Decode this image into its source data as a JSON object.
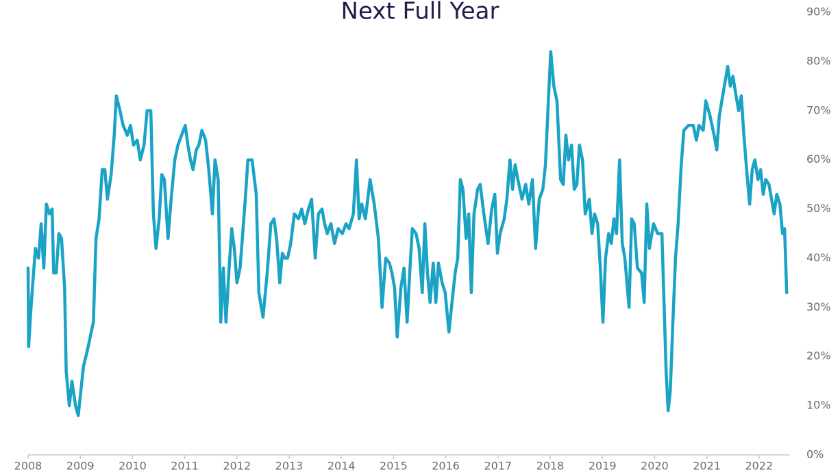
{
  "chart_data": {
    "type": "line",
    "title": "Next Full Year",
    "color": "#1ba3c6",
    "y_axis_side": "right",
    "grid": false,
    "x": [
      2008.0,
      2008.01,
      2008.05,
      2008.09,
      2008.14,
      2008.2,
      2008.25,
      2008.3,
      2008.35,
      2008.41,
      2008.46,
      2008.49,
      2008.54,
      2008.59,
      2008.64,
      2008.7,
      2008.73,
      2008.79,
      2008.84,
      2008.91,
      2008.96,
      2009.01,
      2009.06,
      2009.13,
      2009.19,
      2009.25,
      2009.3,
      2009.36,
      2009.42,
      2009.47,
      2009.52,
      2009.59,
      2009.65,
      2009.69,
      2009.76,
      2009.82,
      2009.9,
      2009.96,
      2010.02,
      2010.09,
      2010.15,
      2010.22,
      2010.28,
      2010.35,
      2010.4,
      2010.45,
      2010.51,
      2010.56,
      2010.61,
      2010.68,
      2010.74,
      2010.81,
      2010.87,
      2010.94,
      2011.01,
      2011.06,
      2011.11,
      2011.16,
      2011.22,
      2011.27,
      2011.33,
      2011.4,
      2011.46,
      2011.53,
      2011.58,
      2011.64,
      2011.69,
      2011.74,
      2011.79,
      2011.85,
      2011.9,
      2011.95,
      2012.0,
      2012.06,
      2012.11,
      2012.16,
      2012.21,
      2012.29,
      2012.37,
      2012.42,
      2012.5,
      2012.58,
      2012.65,
      2012.71,
      2012.76,
      2012.82,
      2012.87,
      2012.92,
      2012.97,
      2013.03,
      2013.1,
      2013.18,
      2013.24,
      2013.3,
      2013.37,
      2013.43,
      2013.5,
      2013.56,
      2013.63,
      2013.68,
      2013.73,
      2013.8,
      2013.87,
      2013.94,
      2014.02,
      2014.09,
      2014.15,
      2014.23,
      2014.29,
      2014.34,
      2014.39,
      2014.46,
      2014.55,
      2014.63,
      2014.71,
      2014.78,
      2014.85,
      2014.92,
      2014.97,
      2015.02,
      2015.07,
      2015.14,
      2015.2,
      2015.26,
      2015.31,
      2015.36,
      2015.43,
      2015.49,
      2015.55,
      2015.6,
      2015.65,
      2015.7,
      2015.76,
      2015.81,
      2015.86,
      2015.93,
      2015.99,
      2016.06,
      2016.12,
      2016.18,
      2016.23,
      2016.28,
      2016.33,
      2016.39,
      2016.44,
      2016.49,
      2016.54,
      2016.61,
      2016.66,
      2016.73,
      2016.81,
      2016.88,
      2016.94,
      2016.99,
      2017.04,
      2017.12,
      2017.17,
      2017.23,
      2017.28,
      2017.33,
      2017.38,
      2017.46,
      2017.53,
      2017.59,
      2017.66,
      2017.72,
      2017.79,
      2017.86,
      2017.91,
      2017.96,
      2018.01,
      2018.07,
      2018.13,
      2018.2,
      2018.25,
      2018.3,
      2018.35,
      2018.41,
      2018.46,
      2018.51,
      2018.56,
      2018.62,
      2018.67,
      2018.75,
      2018.8,
      2018.85,
      2018.91,
      2018.96,
      2019.01,
      2019.06,
      2019.12,
      2019.17,
      2019.22,
      2019.27,
      2019.33,
      2019.38,
      2019.43,
      2019.51,
      2019.56,
      2019.61,
      2019.67,
      2019.75,
      2019.8,
      2019.85,
      2019.9,
      2019.98,
      2020.06,
      2020.14,
      2020.22,
      2020.26,
      2020.3,
      2020.35,
      2020.4,
      2020.45,
      2020.51,
      2020.56,
      2020.65,
      2020.74,
      2020.8,
      2020.85,
      2020.93,
      2020.98,
      2021.06,
      2021.14,
      2021.19,
      2021.24,
      2021.32,
      2021.4,
      2021.45,
      2021.5,
      2021.56,
      2021.61,
      2021.66,
      2021.71,
      2021.77,
      2021.82,
      2021.87,
      2021.92,
      2021.98,
      2022.03,
      2022.08,
      2022.13,
      2022.19,
      2022.24,
      2022.29,
      2022.34,
      2022.4,
      2022.45,
      2022.49,
      2022.53
    ],
    "values": [
      38,
      22,
      29,
      35,
      42,
      40,
      47,
      38,
      51,
      49,
      50,
      37,
      37,
      45,
      44,
      34,
      17,
      10,
      15,
      10,
      8,
      13,
      18,
      21,
      24,
      27,
      44,
      48,
      58,
      58,
      52,
      57,
      65,
      73,
      70,
      67,
      65,
      67,
      63,
      64,
      60,
      63,
      70,
      70,
      49,
      42,
      48,
      57,
      56,
      44,
      52,
      60,
      63,
      65,
      67,
      63,
      60,
      58,
      62,
      63,
      66,
      64,
      58,
      49,
      60,
      56,
      27,
      38,
      27,
      38,
      46,
      42,
      35,
      38,
      45,
      52,
      60,
      60,
      53,
      33,
      28,
      37,
      47,
      48,
      44,
      35,
      41,
      40,
      40,
      43,
      49,
      48,
      50,
      47,
      50,
      52,
      40,
      49,
      50,
      47,
      45,
      47,
      43,
      46,
      45,
      47,
      46,
      49,
      60,
      48,
      51,
      48,
      56,
      51,
      44,
      30,
      40,
      39,
      37,
      34,
      24,
      34,
      38,
      27,
      37,
      46,
      45,
      42,
      33,
      47,
      37,
      31,
      39,
      31,
      39,
      35,
      33,
      25,
      31,
      37,
      40,
      56,
      54,
      44,
      49,
      33,
      49,
      54,
      55,
      49,
      43,
      50,
      53,
      41,
      45,
      48,
      52,
      60,
      54,
      59,
      56,
      52,
      55,
      51,
      56,
      42,
      52,
      54,
      59,
      71,
      82,
      75,
      72,
      56,
      55,
      65,
      60,
      63,
      54,
      55,
      63,
      60,
      49,
      52,
      45,
      49,
      47,
      38,
      27,
      40,
      45,
      43,
      48,
      45,
      60,
      43,
      40,
      30,
      48,
      47,
      38,
      37,
      31,
      51,
      42,
      47,
      45,
      45,
      17,
      9,
      13,
      27,
      40,
      47,
      59,
      66,
      67,
      67,
      64,
      67,
      66,
      72,
      69,
      65,
      62,
      69,
      74,
      79,
      75,
      77,
      73,
      70,
      73,
      65,
      57,
      51,
      58,
      60,
      56,
      58,
      53,
      56,
      55,
      52,
      49,
      53,
      51,
      45,
      46,
      33
    ],
    "xlim": [
      2008,
      2022.58
    ],
    "xticks": [
      2008,
      2009,
      2010,
      2011,
      2012,
      2013,
      2014,
      2015,
      2016,
      2017,
      2018,
      2019,
      2020,
      2021,
      2022
    ],
    "ylim": [
      0,
      90
    ],
    "yticks": [
      {
        "value": 0,
        "label": "0%"
      },
      {
        "value": 10,
        "label": "10%"
      },
      {
        "value": 20,
        "label": "20%"
      },
      {
        "value": 30,
        "label": "30%"
      },
      {
        "value": 40,
        "label": "40%"
      },
      {
        "value": 50,
        "label": "50%"
      },
      {
        "value": 60,
        "label": "60%"
      },
      {
        "value": 70,
        "label": "70%"
      },
      {
        "value": 80,
        "label": "80%"
      },
      {
        "value": 90,
        "label": "90%"
      }
    ]
  }
}
